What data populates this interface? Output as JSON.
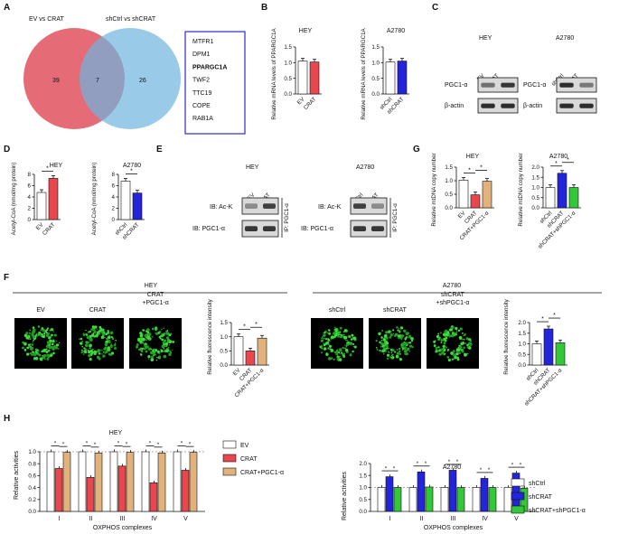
{
  "panels": {
    "A": {
      "letter": "A",
      "left_title": "EV vs CRAT",
      "right_title": "shCtrl vs shCRAT",
      "left_count": "39",
      "overlap_count": "7",
      "right_count": "26",
      "genes": [
        "MTFR1",
        "DPM1",
        "PPARGC1A",
        "TWF2",
        "TTC19",
        "COPE",
        "RAB1A"
      ],
      "highlight_gene": "PPARGC1A",
      "left_color": "#e46470",
      "right_color": "#6eb3de"
    },
    "B": {
      "letter": "B",
      "ylabel": "Relative mRNA levels of PPARGC1A",
      "charts": [
        {
          "title": "HEY",
          "categories": [
            "EV",
            "CRAT"
          ],
          "values": [
            1.05,
            1.02
          ],
          "colors": [
            "#ffffff",
            "#e8474f"
          ],
          "yticks": [
            "0.0",
            "0.5",
            "1.0",
            "1.5"
          ],
          "ymax": 1.5
        },
        {
          "title": "A2780",
          "categories": [
            "shCtrl",
            "shCRAT"
          ],
          "values": [
            1.02,
            1.05
          ],
          "colors": [
            "#ffffff",
            "#2424d8"
          ],
          "yticks": [
            "0.0",
            "0.5",
            "1.0",
            "1.5"
          ],
          "ymax": 1.5
        }
      ]
    },
    "C": {
      "letter": "C",
      "blots": [
        {
          "title": "HEY",
          "lanes": [
            "EV",
            "CRAT"
          ],
          "rows": [
            "PGC1-α",
            "β-actin"
          ]
        },
        {
          "title": "A2780",
          "lanes": [
            "shCtrl",
            "shCRAT"
          ],
          "rows": [
            "PGC1-α",
            "β-actin"
          ]
        }
      ]
    },
    "D": {
      "letter": "D",
      "ylabel": "Acetyl-CoA (nmol/mg protein)",
      "charts": [
        {
          "title": "HEY",
          "categories": [
            "EV",
            "CRAT"
          ],
          "values": [
            4.8,
            7.3
          ],
          "colors": [
            "#ffffff",
            "#e8474f"
          ],
          "yticks": [
            "0",
            "2",
            "4",
            "6",
            "8"
          ],
          "ymax": 8,
          "sig": "*"
        },
        {
          "title": "A2780",
          "categories": [
            "shCtrl",
            "shCRAT"
          ],
          "values": [
            6.8,
            4.7
          ],
          "colors": [
            "#ffffff",
            "#2424d8"
          ],
          "yticks": [
            "0",
            "2",
            "4",
            "6",
            "8"
          ],
          "ymax": 8,
          "sig": "*"
        }
      ]
    },
    "E": {
      "letter": "E",
      "blots": [
        {
          "title": "HEY",
          "lanes": [
            "EV",
            "CRAT"
          ],
          "rows": [
            "IB: Ac-K",
            "IB: PGC1-α"
          ],
          "ip": "IP: PGC1-α"
        },
        {
          "title": "A2780",
          "lanes": [
            "shCtrl",
            "shCRAT"
          ],
          "rows": [
            "IB: Ac-K",
            "IB: PGC1-α"
          ],
          "ip": "IP: PGC1-α"
        }
      ]
    },
    "G": {
      "letter": "G",
      "ylabel": "Relative mtDNA copy number",
      "charts": [
        {
          "title": "HEY",
          "categories": [
            "EV",
            "CRAT",
            "CRAT+PGC1-α"
          ],
          "values": [
            1.02,
            0.48,
            0.98
          ],
          "colors": [
            "#ffffff",
            "#e8474f",
            "#e2b27c"
          ],
          "yticks": [
            "0.0",
            "0.5",
            "1.0",
            "1.5"
          ],
          "ymax": 1.5,
          "sig": "*"
        },
        {
          "title": "A2780",
          "categories": [
            "shCtrl",
            "shCRAT",
            "shCRAT+shPGC1-α"
          ],
          "values": [
            1.0,
            1.7,
            1.0
          ],
          "colors": [
            "#ffffff",
            "#2424d8",
            "#33c83a"
          ],
          "yticks": [
            "0.0",
            "0.5",
            "1.0",
            "1.5",
            "2.0"
          ],
          "ymax": 2.0,
          "sig": "*"
        }
      ]
    },
    "F": {
      "letter": "F",
      "groups": [
        {
          "title": "HEY",
          "images": [
            "EV",
            "CRAT",
            "CRAT\n+PGC1-α"
          ],
          "ylabel": "Relative fluorescence intensity",
          "categories": [
            "EV",
            "CRAT",
            "CRAT+PGC1-α"
          ],
          "values": [
            1.0,
            0.5,
            0.95
          ],
          "colors": [
            "#ffffff",
            "#e8474f",
            "#e2b27c"
          ],
          "yticks": [
            "0.0",
            "0.5",
            "1.0",
            "1.5"
          ],
          "ymax": 1.5,
          "sig": "*"
        },
        {
          "title": "A2780",
          "images": [
            "shCtrl",
            "shCRAT",
            "shCRAT\n+shPGC1-α"
          ],
          "ylabel": "Relative fluorescence intensity",
          "categories": [
            "shCtrl",
            "shCRAT",
            "shCRAT+shPGC1-α"
          ],
          "values": [
            1.0,
            1.7,
            1.05
          ],
          "colors": [
            "#ffffff",
            "#2424d8",
            "#33c83a"
          ],
          "yticks": [
            "0.0",
            "0.5",
            "1.0",
            "1.5",
            "2.0"
          ],
          "ymax": 2.0,
          "sig": "*"
        }
      ]
    },
    "H": {
      "letter": "H",
      "xlabel": "OXPHOS complexes",
      "ylabel": "Relative activities",
      "charts": [
        {
          "title": "HEY",
          "categories": [
            "I",
            "II",
            "III",
            "IV",
            "V"
          ],
          "yticks": [
            "0.0",
            "0.2",
            "0.4",
            "0.6",
            "0.8",
            "1.0"
          ],
          "ymax": 1.0,
          "series": [
            {
              "name": "EV",
              "color": "#ffffff",
              "values": [
                1.0,
                1.0,
                1.0,
                1.0,
                1.0
              ]
            },
            {
              "name": "CRAT",
              "color": "#e8474f",
              "values": [
                0.72,
                0.57,
                0.76,
                0.48,
                0.69
              ]
            },
            {
              "name": "CRAT+PGC1-α",
              "color": "#e2b27c",
              "values": [
                0.99,
                0.98,
                0.99,
                0.98,
                0.99
              ]
            }
          ]
        },
        {
          "title": "A2780",
          "categories": [
            "I",
            "II",
            "III",
            "IV",
            "V"
          ],
          "yticks": [
            "0.0",
            "0.5",
            "1.0",
            "1.5",
            "2.0"
          ],
          "ymax": 2.0,
          "series": [
            {
              "name": "shCtrl",
              "color": "#ffffff",
              "values": [
                1.0,
                1.0,
                1.0,
                1.0,
                1.0
              ]
            },
            {
              "name": "shCRAT",
              "color": "#2424d8",
              "values": [
                1.45,
                1.65,
                1.72,
                1.38,
                1.6
              ]
            },
            {
              "name": "shCRAT+shPGC1-α",
              "color": "#33c83a",
              "values": [
                1.0,
                1.02,
                1.0,
                1.0,
                0.97
              ]
            }
          ]
        }
      ]
    }
  },
  "chart_data": [
    {
      "type": "bar",
      "title": "HEY",
      "categories": [
        "EV",
        "CRAT"
      ],
      "values": [
        1.05,
        1.02
      ],
      "ylabel": "Relative mRNA levels of PPARGC1A",
      "ylim": [
        0,
        1.5
      ]
    },
    {
      "type": "bar",
      "title": "A2780",
      "categories": [
        "shCtrl",
        "shCRAT"
      ],
      "values": [
        1.02,
        1.05
      ],
      "ylabel": "Relative mRNA levels of PPARGC1A",
      "ylim": [
        0,
        1.5
      ]
    },
    {
      "type": "bar",
      "title": "HEY",
      "categories": [
        "EV",
        "CRAT"
      ],
      "values": [
        4.8,
        7.3
      ],
      "ylabel": "Acetyl-CoA (nmol/mg protein)",
      "ylim": [
        0,
        8
      ]
    },
    {
      "type": "bar",
      "title": "A2780",
      "categories": [
        "shCtrl",
        "shCRAT"
      ],
      "values": [
        6.8,
        4.7
      ],
      "ylabel": "Acetyl-CoA (nmol/mg protein)",
      "ylim": [
        0,
        8
      ]
    },
    {
      "type": "bar",
      "title": "HEY",
      "categories": [
        "EV",
        "CRAT",
        "CRAT+PGC1-α"
      ],
      "values": [
        1.02,
        0.48,
        0.98
      ],
      "ylabel": "Relative mtDNA copy number",
      "ylim": [
        0,
        1.5
      ]
    },
    {
      "type": "bar",
      "title": "A2780",
      "categories": [
        "shCtrl",
        "shCRAT",
        "shCRAT+shPGC1-α"
      ],
      "values": [
        1.0,
        1.7,
        1.0
      ],
      "ylabel": "Relative mtDNA copy number",
      "ylim": [
        0,
        2.0
      ]
    },
    {
      "type": "bar",
      "title": "HEY",
      "categories": [
        "EV",
        "CRAT",
        "CRAT+PGC1-α"
      ],
      "values": [
        1.0,
        0.5,
        0.95
      ],
      "ylabel": "Relative fluorescence intensity",
      "ylim": [
        0,
        1.5
      ]
    },
    {
      "type": "bar",
      "title": "A2780",
      "categories": [
        "shCtrl",
        "shCRAT",
        "shCRAT+shPGC1-α"
      ],
      "values": [
        1.0,
        1.7,
        1.05
      ],
      "ylabel": "Relative fluorescence intensity",
      "ylim": [
        0,
        2.0
      ]
    },
    {
      "type": "bar",
      "title": "HEY",
      "categories": [
        "I",
        "II",
        "III",
        "IV",
        "V"
      ],
      "xlabel": "OXPHOS complexes",
      "ylabel": "Relative activities",
      "ylim": [
        0,
        1.0
      ],
      "series": [
        {
          "name": "EV",
          "values": [
            1.0,
            1.0,
            1.0,
            1.0,
            1.0
          ]
        },
        {
          "name": "CRAT",
          "values": [
            0.72,
            0.57,
            0.76,
            0.48,
            0.69
          ]
        },
        {
          "name": "CRAT+PGC1-α",
          "values": [
            0.99,
            0.98,
            0.99,
            0.98,
            0.99
          ]
        }
      ]
    },
    {
      "type": "bar",
      "title": "A2780",
      "categories": [
        "I",
        "II",
        "III",
        "IV",
        "V"
      ],
      "xlabel": "OXPHOS complexes",
      "ylabel": "Relative activities",
      "ylim": [
        0,
        2.0
      ],
      "series": [
        {
          "name": "shCtrl",
          "values": [
            1.0,
            1.0,
            1.0,
            1.0,
            1.0
          ]
        },
        {
          "name": "shCRAT",
          "values": [
            1.45,
            1.65,
            1.72,
            1.38,
            1.6
          ]
        },
        {
          "name": "shCRAT+shPGC1-α",
          "values": [
            1.0,
            1.02,
            1.0,
            1.0,
            0.97
          ]
        }
      ]
    }
  ]
}
